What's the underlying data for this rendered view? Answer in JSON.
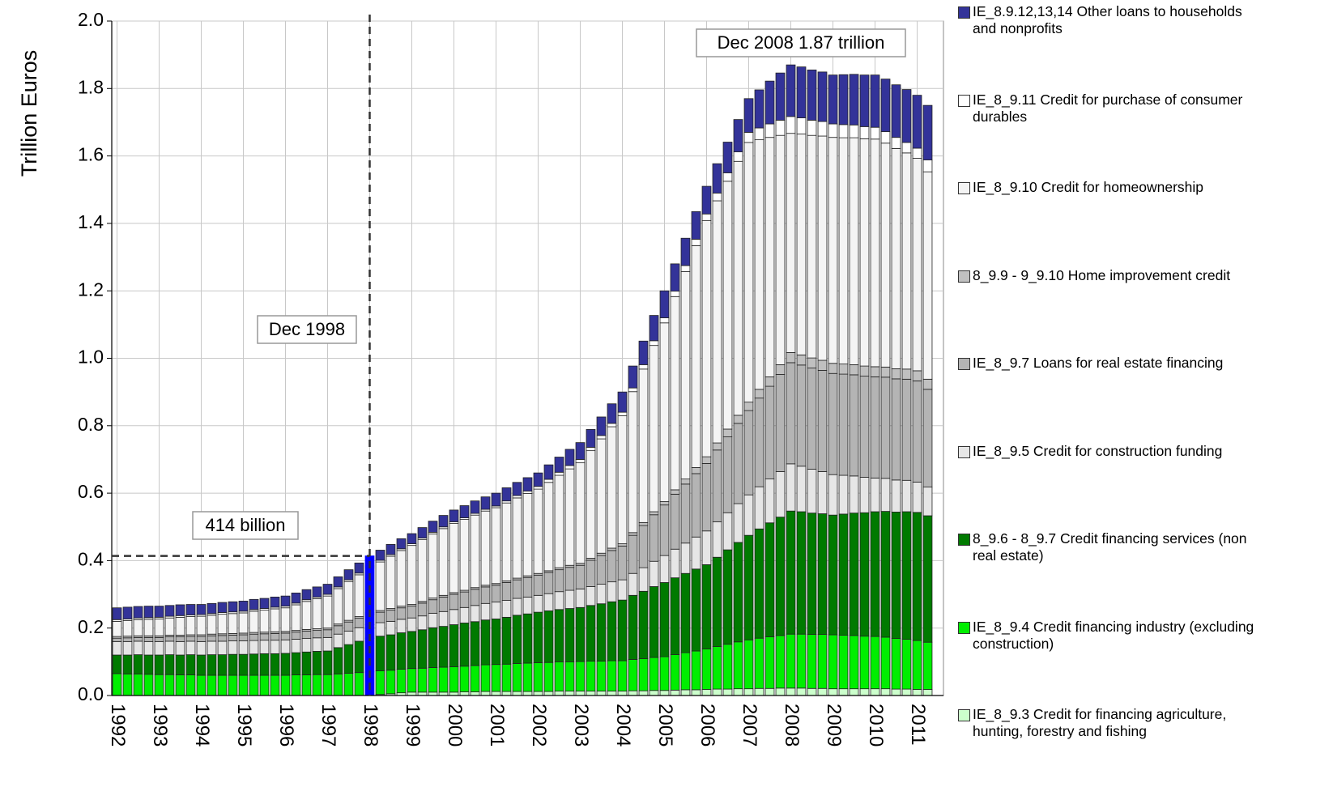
{
  "chart_data": {
    "type": "stacked_bar",
    "y_label": "Trillion Euros",
    "categories": [
      "1992",
      null,
      null,
      null,
      "1993",
      null,
      null,
      null,
      "1994",
      null,
      null,
      null,
      "1995",
      null,
      null,
      null,
      "1996",
      null,
      null,
      null,
      "1997",
      null,
      null,
      null,
      "1998",
      null,
      null,
      null,
      "1999",
      null,
      null,
      null,
      "2000",
      null,
      null,
      null,
      "2001",
      null,
      null,
      null,
      "2002",
      null,
      null,
      null,
      "2003",
      null,
      null,
      null,
      "2004",
      null,
      null,
      null,
      "2005",
      null,
      null,
      null,
      "2006",
      null,
      null,
      null,
      "2007",
      null,
      null,
      null,
      "2008",
      null,
      null,
      null,
      "2009",
      null,
      null,
      null,
      "2010",
      null,
      null,
      null,
      "2011",
      null
    ],
    "ylim": [
      0,
      2
    ],
    "yticks": [
      {
        "value": 0,
        "label": "0.0"
      },
      0.2,
      0.4,
      0.6,
      0.8,
      {
        "value": 1,
        "label": "1.0"
      },
      1.2,
      1.4,
      1.6,
      1.8,
      {
        "value": 2,
        "label": "2.0"
      }
    ],
    "grid": true,
    "highlight": {
      "category_index": 24,
      "color": "#0000ff"
    },
    "annotations": [
      {
        "text": "Dec 2008 1.87 trillion"
      },
      {
        "text": "Dec 1998"
      },
      {
        "text": "414 billion",
        "y": 0.414
      }
    ],
    "series": [
      {
        "name": "IE_8_9.3 Credit for financing agriculture, hunting, forestry and fishing",
        "color": "#ccffcc",
        "values": [
          0,
          0,
          0,
          0,
          0,
          0,
          0,
          0,
          0,
          0,
          0,
          0,
          0,
          0,
          0,
          0,
          0,
          0,
          0,
          0,
          0,
          0,
          0,
          0,
          0,
          0.003,
          0.005,
          0.008,
          0.01,
          0.01,
          0.01,
          0.01,
          0.01,
          0.011,
          0.011,
          0.012,
          0.012,
          0.012,
          0.012,
          0.012,
          0.012,
          0.012,
          0.013,
          0.013,
          0.013,
          0.013,
          0.013,
          0.013,
          0.013,
          0.014,
          0.014,
          0.015,
          0.015,
          0.016,
          0.017,
          0.017,
          0.018,
          0.019,
          0.019,
          0.02,
          0.02,
          0.021,
          0.021,
          0.022,
          0.022,
          0.022,
          0.021,
          0.021,
          0.02,
          0.02,
          0.02,
          0.02,
          0.02,
          0.02,
          0.019,
          0.019,
          0.018,
          0.018
        ]
      },
      {
        "name": "IE_8_9.4 Credit financing industry (excluding construction)",
        "color": "#00ee00",
        "values": [
          0.065,
          0.064,
          0.064,
          0.063,
          0.062,
          0.062,
          0.061,
          0.061,
          0.06,
          0.06,
          0.06,
          0.06,
          0.06,
          0.06,
          0.06,
          0.06,
          0.06,
          0.061,
          0.061,
          0.062,
          0.062,
          0.064,
          0.066,
          0.068,
          0.07,
          0.07,
          0.07,
          0.07,
          0.07,
          0.071,
          0.073,
          0.074,
          0.075,
          0.076,
          0.078,
          0.079,
          0.08,
          0.081,
          0.083,
          0.084,
          0.085,
          0.086,
          0.087,
          0.087,
          0.088,
          0.089,
          0.089,
          0.09,
          0.09,
          0.093,
          0.095,
          0.098,
          0.1,
          0.105,
          0.11,
          0.115,
          0.12,
          0.126,
          0.133,
          0.139,
          0.145,
          0.149,
          0.153,
          0.156,
          0.16,
          0.16,
          0.16,
          0.16,
          0.16,
          0.159,
          0.158,
          0.156,
          0.155,
          0.153,
          0.15,
          0.148,
          0.145,
          0.14
        ]
      },
      {
        "name": "8_9.6 - 8_9.7 Credit financing services (non real estate)",
        "color": "#007a00",
        "values": [
          0.055,
          0.056,
          0.057,
          0.057,
          0.058,
          0.059,
          0.059,
          0.06,
          0.06,
          0.061,
          0.061,
          0.062,
          0.062,
          0.063,
          0.064,
          0.064,
          0.065,
          0.066,
          0.068,
          0.069,
          0.07,
          0.078,
          0.085,
          0.093,
          0.1,
          0.103,
          0.105,
          0.108,
          0.11,
          0.114,
          0.118,
          0.121,
          0.125,
          0.128,
          0.13,
          0.133,
          0.135,
          0.139,
          0.143,
          0.146,
          0.15,
          0.153,
          0.155,
          0.158,
          0.16,
          0.165,
          0.17,
          0.175,
          0.18,
          0.19,
          0.2,
          0.21,
          0.22,
          0.228,
          0.235,
          0.243,
          0.25,
          0.265,
          0.28,
          0.295,
          0.31,
          0.324,
          0.338,
          0.351,
          0.365,
          0.363,
          0.36,
          0.358,
          0.355,
          0.359,
          0.363,
          0.366,
          0.37,
          0.373,
          0.375,
          0.378,
          0.38,
          0.375
        ]
      },
      {
        "name": "IE_8_9.5 Credit for construction funding",
        "color": "#e6e6e6",
        "values": [
          0.04,
          0.04,
          0.04,
          0.04,
          0.04,
          0.04,
          0.04,
          0.04,
          0.04,
          0.04,
          0.04,
          0.04,
          0.04,
          0.04,
          0.04,
          0.04,
          0.04,
          0.04,
          0.04,
          0.04,
          0.04,
          0.04,
          0.04,
          0.04,
          0.04,
          0.04,
          0.04,
          0.04,
          0.04,
          0.041,
          0.043,
          0.044,
          0.045,
          0.046,
          0.048,
          0.049,
          0.05,
          0.05,
          0.05,
          0.05,
          0.05,
          0.051,
          0.053,
          0.054,
          0.055,
          0.056,
          0.058,
          0.059,
          0.06,
          0.065,
          0.07,
          0.075,
          0.08,
          0.085,
          0.09,
          0.095,
          0.1,
          0.105,
          0.11,
          0.115,
          0.12,
          0.125,
          0.13,
          0.135,
          0.14,
          0.135,
          0.13,
          0.125,
          0.12,
          0.115,
          0.11,
          0.105,
          0.1,
          0.098,
          0.095,
          0.093,
          0.09,
          0.085
        ]
      },
      {
        "name": "IE_8_9.7 Loans for real estate financing",
        "color": "#b4b4b4",
        "values": [
          0.01,
          0.011,
          0.011,
          0.012,
          0.012,
          0.013,
          0.014,
          0.014,
          0.015,
          0.016,
          0.017,
          0.017,
          0.018,
          0.019,
          0.019,
          0.02,
          0.02,
          0.021,
          0.022,
          0.022,
          0.023,
          0.025,
          0.027,
          0.028,
          0.03,
          0.031,
          0.033,
          0.034,
          0.035,
          0.038,
          0.04,
          0.043,
          0.045,
          0.046,
          0.048,
          0.049,
          0.05,
          0.053,
          0.055,
          0.058,
          0.06,
          0.063,
          0.065,
          0.068,
          0.07,
          0.078,
          0.085,
          0.093,
          0.1,
          0.113,
          0.125,
          0.138,
          0.15,
          0.163,
          0.175,
          0.188,
          0.2,
          0.213,
          0.225,
          0.238,
          0.25,
          0.263,
          0.275,
          0.288,
          0.3,
          0.3,
          0.3,
          0.3,
          0.3,
          0.3,
          0.3,
          0.3,
          0.3,
          0.3,
          0.3,
          0.3,
          0.3,
          0.29
        ]
      },
      {
        "name": "8_9.9 - 9_9.10 Home improvement credit",
        "color": "#c0c0c0",
        "values": [
          0.005,
          0.005,
          0.005,
          0.005,
          0.005,
          0.005,
          0.005,
          0.005,
          0.005,
          0.005,
          0.005,
          0.005,
          0.005,
          0.005,
          0.005,
          0.005,
          0.005,
          0.005,
          0.005,
          0.005,
          0.005,
          0.005,
          0.005,
          0.005,
          0.005,
          0.005,
          0.005,
          0.005,
          0.005,
          0.005,
          0.005,
          0.005,
          0.005,
          0.005,
          0.005,
          0.005,
          0.005,
          0.005,
          0.005,
          0.005,
          0.005,
          0.005,
          0.006,
          0.006,
          0.006,
          0.006,
          0.007,
          0.007,
          0.007,
          0.008,
          0.009,
          0.009,
          0.01,
          0.013,
          0.015,
          0.018,
          0.02,
          0.021,
          0.023,
          0.024,
          0.025,
          0.026,
          0.028,
          0.029,
          0.03,
          0.03,
          0.03,
          0.03,
          0.03,
          0.03,
          0.03,
          0.03,
          0.03,
          0.03,
          0.03,
          0.03,
          0.03,
          0.03
        ]
      },
      {
        "name": "IE_8_9.10 Credit for homeownership",
        "color": "#f4f4f4",
        "values": [
          0.045,
          0.046,
          0.048,
          0.049,
          0.05,
          0.051,
          0.053,
          0.054,
          0.055,
          0.056,
          0.058,
          0.059,
          0.06,
          0.063,
          0.065,
          0.068,
          0.07,
          0.076,
          0.083,
          0.089,
          0.095,
          0.105,
          0.115,
          0.124,
          0.134,
          0.144,
          0.155,
          0.165,
          0.175,
          0.183,
          0.19,
          0.198,
          0.205,
          0.21,
          0.215,
          0.22,
          0.225,
          0.231,
          0.238,
          0.244,
          0.25,
          0.262,
          0.274,
          0.286,
          0.298,
          0.319,
          0.339,
          0.36,
          0.38,
          0.418,
          0.455,
          0.493,
          0.53,
          0.573,
          0.615,
          0.658,
          0.7,
          0.718,
          0.735,
          0.753,
          0.77,
          0.74,
          0.71,
          0.68,
          0.65,
          0.655,
          0.66,
          0.665,
          0.67,
          0.671,
          0.673,
          0.674,
          0.675,
          0.664,
          0.653,
          0.641,
          0.63,
          0.615
        ]
      },
      {
        "name": "IE_8_9.11 Credit for purchase of consumer durables",
        "color": "#ffffff",
        "values": [
          0.005,
          0.005,
          0.005,
          0.005,
          0.005,
          0.005,
          0.005,
          0.005,
          0.005,
          0.005,
          0.005,
          0.005,
          0.005,
          0.005,
          0.005,
          0.005,
          0.005,
          0.005,
          0.005,
          0.005,
          0.005,
          0.005,
          0.005,
          0.005,
          0.005,
          0.005,
          0.005,
          0.005,
          0.005,
          0.005,
          0.005,
          0.005,
          0.005,
          0.005,
          0.005,
          0.005,
          0.005,
          0.006,
          0.007,
          0.007,
          0.008,
          0.009,
          0.009,
          0.01,
          0.01,
          0.01,
          0.01,
          0.01,
          0.01,
          0.011,
          0.013,
          0.014,
          0.015,
          0.016,
          0.018,
          0.019,
          0.02,
          0.023,
          0.025,
          0.028,
          0.03,
          0.035,
          0.04,
          0.045,
          0.05,
          0.048,
          0.045,
          0.043,
          0.04,
          0.039,
          0.038,
          0.036,
          0.035,
          0.034,
          0.033,
          0.031,
          0.03,
          0.035
        ]
      },
      {
        "name": "IE_8.9.12,13,14 Other loans to households and nonprofits",
        "color": "#333399",
        "values": [
          0.035,
          0.035,
          0.034,
          0.034,
          0.033,
          0.032,
          0.032,
          0.031,
          0.03,
          0.03,
          0.03,
          0.03,
          0.03,
          0.03,
          0.03,
          0.03,
          0.03,
          0.03,
          0.03,
          0.03,
          0.03,
          0.03,
          0.03,
          0.03,
          0.03,
          0.03,
          0.03,
          0.03,
          0.03,
          0.031,
          0.033,
          0.034,
          0.035,
          0.036,
          0.037,
          0.037,
          0.038,
          0.039,
          0.039,
          0.04,
          0.04,
          0.043,
          0.045,
          0.048,
          0.05,
          0.053,
          0.055,
          0.058,
          0.06,
          0.065,
          0.07,
          0.075,
          0.08,
          0.081,
          0.081,
          0.082,
          0.082,
          0.087,
          0.091,
          0.096,
          0.1,
          0.113,
          0.127,
          0.14,
          0.153,
          0.151,
          0.149,
          0.147,
          0.145,
          0.148,
          0.15,
          0.153,
          0.155,
          0.156,
          0.156,
          0.157,
          0.157,
          0.162
        ]
      }
    ]
  }
}
